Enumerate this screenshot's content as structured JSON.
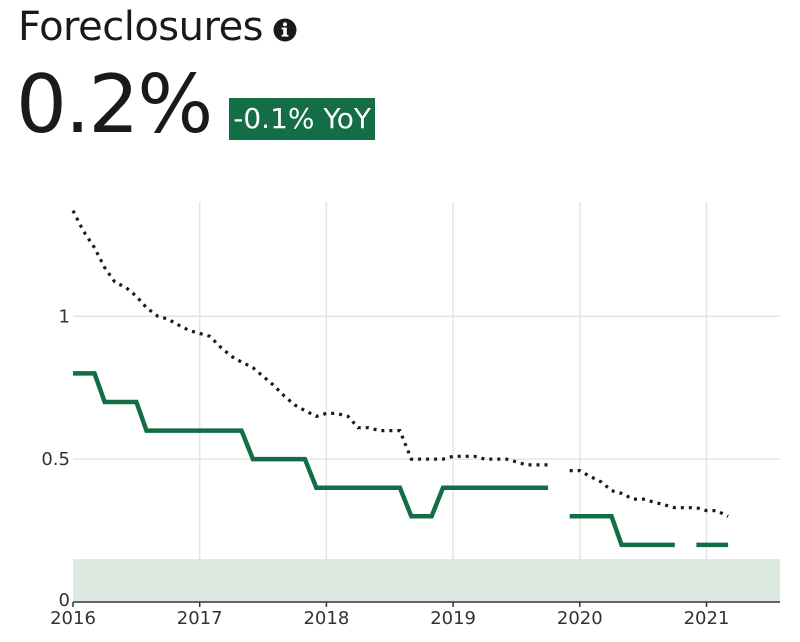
{
  "header": {
    "title": "Foreclosures",
    "value": "0.2%",
    "change_badge": "-0.1% YoY"
  },
  "colors": {
    "accent": "#136d45",
    "series_dotted": "#1a1a1a",
    "band": "#dbe9e1",
    "grid": "#e4e4e4"
  },
  "icons": {
    "info": "info-circle-icon"
  },
  "chart_data": {
    "type": "line",
    "xlim": [
      2016,
      2021.58
    ],
    "ylim": [
      0,
      1.4
    ],
    "x_ticks": [
      "2016",
      "2017",
      "2018",
      "2019",
      "2020",
      "2021"
    ],
    "x_tick_values": [
      2016,
      2017,
      2018,
      2019,
      2020,
      2021
    ],
    "y_ticks": [
      "0",
      "0.5",
      "1"
    ],
    "y_tick_values": [
      0,
      0.5,
      1
    ],
    "grid": true,
    "band": {
      "y_from": 0,
      "y_to": 0.15
    },
    "series": [
      {
        "style": "dotted",
        "segments": [
          [
            [
              2016.0,
              1.37
            ],
            [
              2016.08,
              1.3
            ],
            [
              2016.17,
              1.24
            ],
            [
              2016.25,
              1.17
            ],
            [
              2016.33,
              1.12
            ],
            [
              2016.42,
              1.1
            ],
            [
              2016.5,
              1.07
            ],
            [
              2016.58,
              1.03
            ],
            [
              2016.67,
              1.0
            ],
            [
              2016.75,
              0.99
            ],
            [
              2016.83,
              0.97
            ],
            [
              2016.92,
              0.95
            ],
            [
              2017.0,
              0.94
            ],
            [
              2017.08,
              0.93
            ],
            [
              2017.17,
              0.89
            ],
            [
              2017.25,
              0.86
            ],
            [
              2017.33,
              0.84
            ],
            [
              2017.42,
              0.82
            ],
            [
              2017.5,
              0.79
            ],
            [
              2017.58,
              0.76
            ],
            [
              2017.67,
              0.72
            ],
            [
              2017.75,
              0.69
            ],
            [
              2017.83,
              0.67
            ],
            [
              2017.92,
              0.65
            ],
            [
              2018.0,
              0.66
            ],
            [
              2018.08,
              0.66
            ],
            [
              2018.17,
              0.65
            ],
            [
              2018.25,
              0.61
            ],
            [
              2018.33,
              0.61
            ],
            [
              2018.42,
              0.6
            ],
            [
              2018.5,
              0.6
            ],
            [
              2018.58,
              0.6
            ],
            [
              2018.67,
              0.5
            ],
            [
              2018.75,
              0.5
            ],
            [
              2018.83,
              0.5
            ],
            [
              2018.92,
              0.5
            ],
            [
              2019.0,
              0.51
            ],
            [
              2019.08,
              0.51
            ],
            [
              2019.17,
              0.51
            ],
            [
              2019.25,
              0.5
            ],
            [
              2019.33,
              0.5
            ],
            [
              2019.42,
              0.5
            ],
            [
              2019.5,
              0.49
            ],
            [
              2019.58,
              0.48
            ],
            [
              2019.67,
              0.48
            ],
            [
              2019.75,
              0.48
            ]
          ],
          [
            [
              2019.92,
              0.46
            ],
            [
              2020.0,
              0.46
            ],
            [
              2020.08,
              0.44
            ],
            [
              2020.17,
              0.42
            ],
            [
              2020.25,
              0.39
            ],
            [
              2020.33,
              0.38
            ],
            [
              2020.42,
              0.36
            ],
            [
              2020.5,
              0.36
            ],
            [
              2020.58,
              0.35
            ],
            [
              2020.67,
              0.34
            ],
            [
              2020.75,
              0.33
            ],
            [
              2020.83,
              0.33
            ],
            [
              2020.92,
              0.33
            ],
            [
              2021.0,
              0.32
            ],
            [
              2021.08,
              0.32
            ],
            [
              2021.17,
              0.3
            ]
          ]
        ]
      },
      {
        "style": "solid",
        "segments": [
          [
            [
              2016.0,
              0.8
            ],
            [
              2016.17,
              0.8
            ],
            [
              2016.25,
              0.7
            ],
            [
              2016.5,
              0.7
            ],
            [
              2016.58,
              0.6
            ],
            [
              2017.33,
              0.6
            ],
            [
              2017.42,
              0.5
            ],
            [
              2017.83,
              0.5
            ],
            [
              2017.92,
              0.4
            ],
            [
              2018.58,
              0.4
            ],
            [
              2018.67,
              0.3
            ],
            [
              2018.83,
              0.3
            ],
            [
              2018.92,
              0.4
            ],
            [
              2019.75,
              0.4
            ]
          ],
          [
            [
              2019.92,
              0.3
            ],
            [
              2020.25,
              0.3
            ],
            [
              2020.33,
              0.2
            ],
            [
              2020.75,
              0.2
            ]
          ],
          [
            [
              2020.92,
              0.2
            ],
            [
              2021.17,
              0.2
            ]
          ]
        ]
      }
    ]
  }
}
